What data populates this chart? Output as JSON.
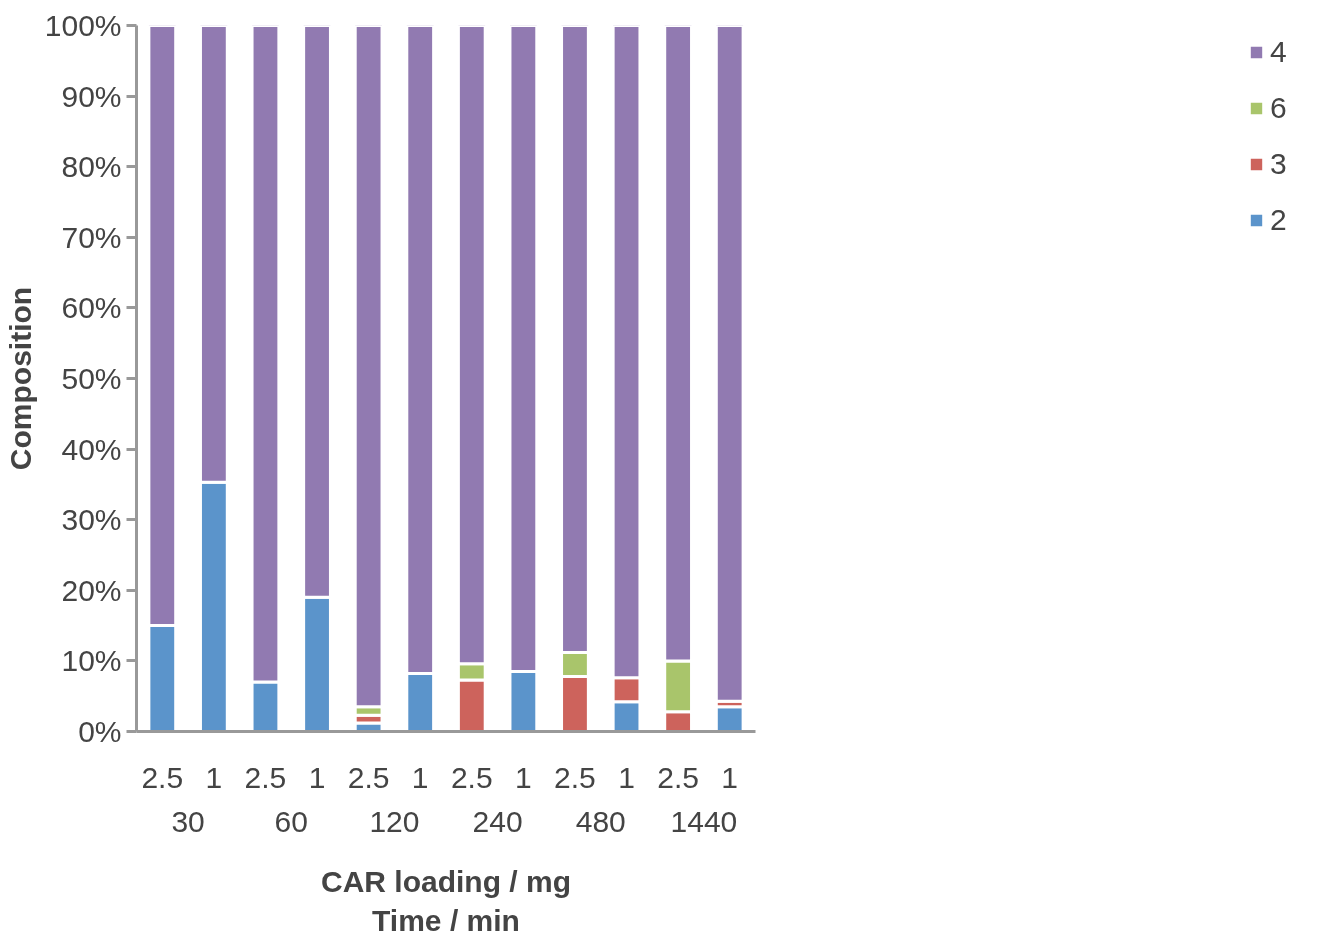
{
  "chart_data": {
    "type": "bar",
    "stacked": true,
    "xlabel": "CAR loading / mg\nTime / min",
    "ylabel": "Composition",
    "categories": [
      "2.5",
      "1",
      "2.5",
      "1",
      "2.5",
      "1",
      "2.5",
      "1",
      "2.5",
      "1",
      "2.5",
      "1"
    ],
    "annotations": [
      "30",
      "60",
      "120",
      "240",
      "480",
      "1440"
    ],
    "series": [
      {
        "name": "2",
        "color": "#5b94cb",
        "values": [
          15,
          35.3,
          7,
          19,
          1.2,
          8.2,
          null,
          8.5,
          null,
          4.2,
          null,
          3.5
        ]
      },
      {
        "name": "3",
        "color": "#cd635c",
        "values": [
          null,
          null,
          null,
          null,
          1.1,
          null,
          7.3,
          null,
          7.8,
          3.4,
          2.8,
          0.8
        ]
      },
      {
        "name": "6",
        "color": "#a9c56b",
        "values": [
          null,
          null,
          null,
          null,
          1.2,
          null,
          2.3,
          null,
          3.4,
          null,
          7.2,
          null
        ]
      },
      {
        "name": "4",
        "color": "#917ab1",
        "values": [
          85,
          64.7,
          93,
          81,
          96.5,
          91.8,
          90.4,
          91.5,
          88.8,
          92.4,
          90,
          95.7
        ]
      }
    ],
    "ylim": [
      0,
      100
    ],
    "yticks": [
      {
        "value": 0,
        "label": "0%"
      },
      {
        "value": 10,
        "label": "10%"
      },
      {
        "value": 20,
        "label": "20%"
      },
      {
        "value": 30,
        "label": "30%"
      },
      {
        "value": 40,
        "label": "40%"
      },
      {
        "value": 50,
        "label": "50%"
      },
      {
        "value": 60,
        "label": "60%"
      },
      {
        "value": 70,
        "label": "70%"
      },
      {
        "value": 80,
        "label": "80%"
      },
      {
        "value": 90,
        "label": "90%"
      },
      {
        "value": 100,
        "label": "100%"
      }
    ],
    "grid": false,
    "legend": "right"
  }
}
